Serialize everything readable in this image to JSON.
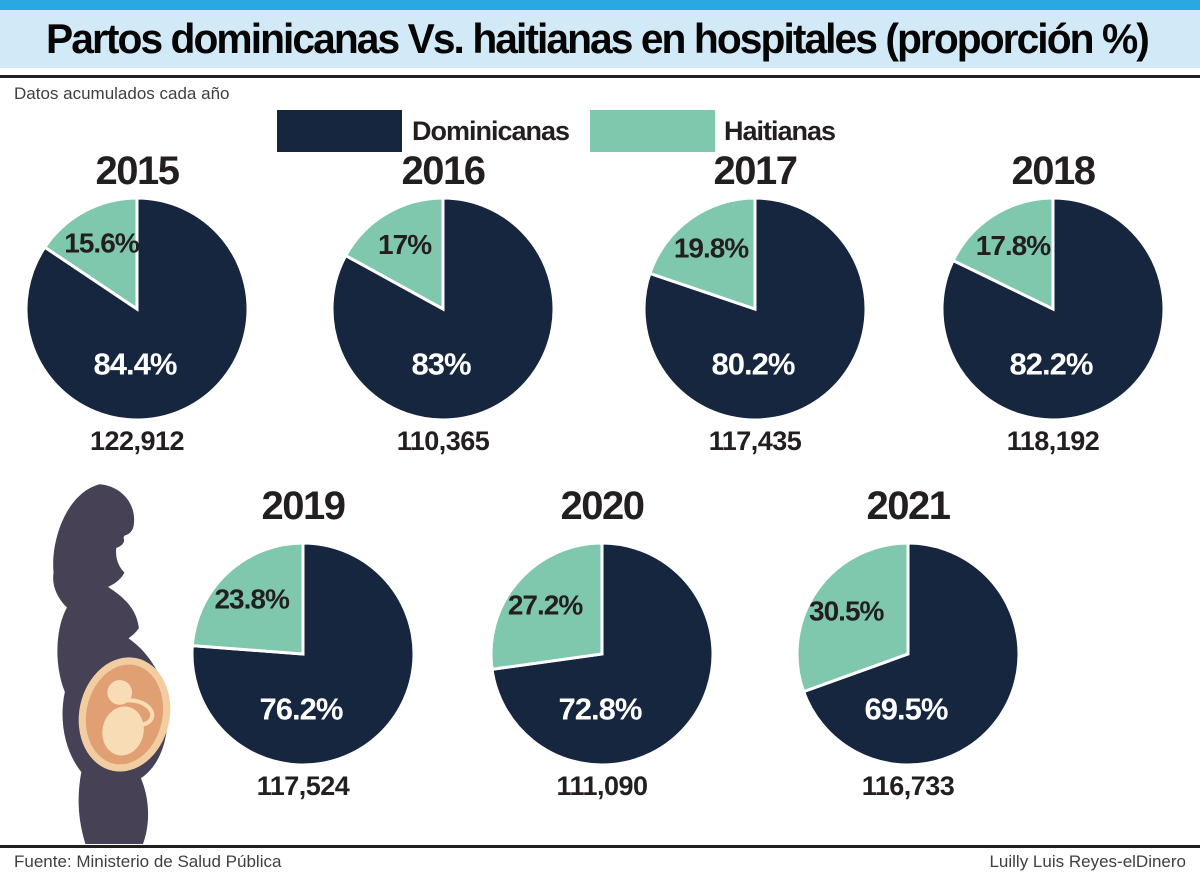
{
  "header": {
    "title": "Partos dominicanas Vs. haitianas en hospitales (proporción %)",
    "subtitle": "Datos acumulados cada año"
  },
  "colors": {
    "dominicanas": "#16263f",
    "haitianas": "#7fc8ae",
    "top_strip": "#29a9e1",
    "title_band": "#d2e9f8",
    "slice_gap": "#ffffff"
  },
  "legend": {
    "position": "top",
    "items": [
      {
        "label": "Dominicanas",
        "color": "#16263f"
      },
      {
        "label": "Haitianas",
        "color": "#7fc8ae"
      }
    ]
  },
  "chart_data": [
    {
      "type": "pie",
      "title": "2015",
      "total": "122,912",
      "series": [
        {
          "name": "Dominicanas",
          "value": 84.4,
          "label": "84.4%"
        },
        {
          "name": "Haitianas",
          "value": 15.6,
          "label": "15.6%"
        }
      ]
    },
    {
      "type": "pie",
      "title": "2016",
      "total": "110,365",
      "series": [
        {
          "name": "Dominicanas",
          "value": 83,
          "label": "83%"
        },
        {
          "name": "Haitianas",
          "value": 17,
          "label": "17%"
        }
      ]
    },
    {
      "type": "pie",
      "title": "2017",
      "total": "117,435",
      "series": [
        {
          "name": "Dominicanas",
          "value": 80.2,
          "label": "80.2%"
        },
        {
          "name": "Haitianas",
          "value": 19.8,
          "label": "19.8%"
        }
      ]
    },
    {
      "type": "pie",
      "title": "2018",
      "total": "118,192",
      "series": [
        {
          "name": "Dominicanas",
          "value": 82.2,
          "label": "82.2%"
        },
        {
          "name": "Haitianas",
          "value": 17.8,
          "label": "17.8%"
        }
      ]
    },
    {
      "type": "pie",
      "title": "2019",
      "total": "117,524",
      "series": [
        {
          "name": "Dominicanas",
          "value": 76.2,
          "label": "76.2%"
        },
        {
          "name": "Haitianas",
          "value": 23.8,
          "label": "23.8%"
        }
      ]
    },
    {
      "type": "pie",
      "title": "2020",
      "total": "111,090",
      "series": [
        {
          "name": "Dominicanas",
          "value": 72.8,
          "label": "72.8%"
        },
        {
          "name": "Haitianas",
          "value": 27.2,
          "label": "27.2%"
        }
      ]
    },
    {
      "type": "pie",
      "title": "2021",
      "total": "116,733",
      "series": [
        {
          "name": "Dominicanas",
          "value": 69.5,
          "label": "69.5%"
        },
        {
          "name": "Haitianas",
          "value": 30.5,
          "label": "30.5%"
        }
      ]
    }
  ],
  "footer": {
    "source": "Fuente: Ministerio de Salud Pública",
    "credit": "Luilly Luis Reyes-elDinero"
  }
}
